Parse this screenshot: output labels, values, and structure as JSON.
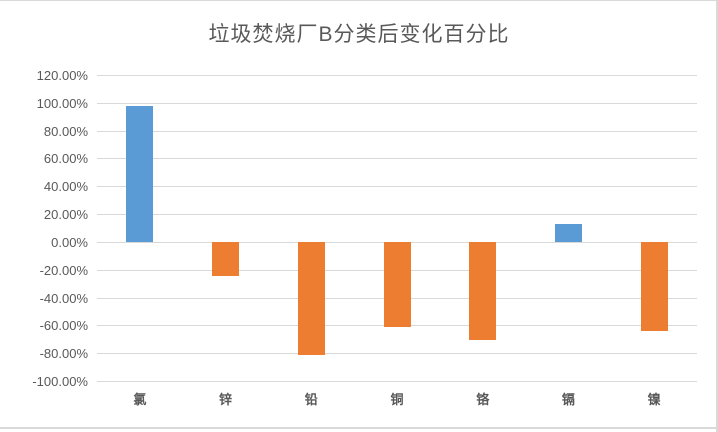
{
  "page": {
    "background": "#ffffff",
    "border_color": "#d9d9d9"
  },
  "chart_data": {
    "type": "bar",
    "title": "垃圾焚烧厂B分类后变化百分比",
    "categories": [
      "氯",
      "锌",
      "铅",
      "铜",
      "铬",
      "镉",
      "镍"
    ],
    "values": [
      98,
      -24,
      -81,
      -61,
      -70,
      13,
      -64
    ],
    "xlabel": "",
    "ylabel": "",
    "ylim": [
      -100,
      120
    ],
    "ytick_step": 20,
    "ytick_labels": [
      "120.00%",
      "100.00%",
      "80.00%",
      "60.00%",
      "40.00%",
      "20.00%",
      "0.00%",
      "-20.00%",
      "-40.00%",
      "-60.00%",
      "-80.00%",
      "-100.00%"
    ],
    "grid": true,
    "legend_position": "none",
    "positive_color": "#5B9BD5",
    "negative_color": "#ED7D31",
    "gridline_color": "#D9D9D9",
    "text_color": "#595959"
  }
}
